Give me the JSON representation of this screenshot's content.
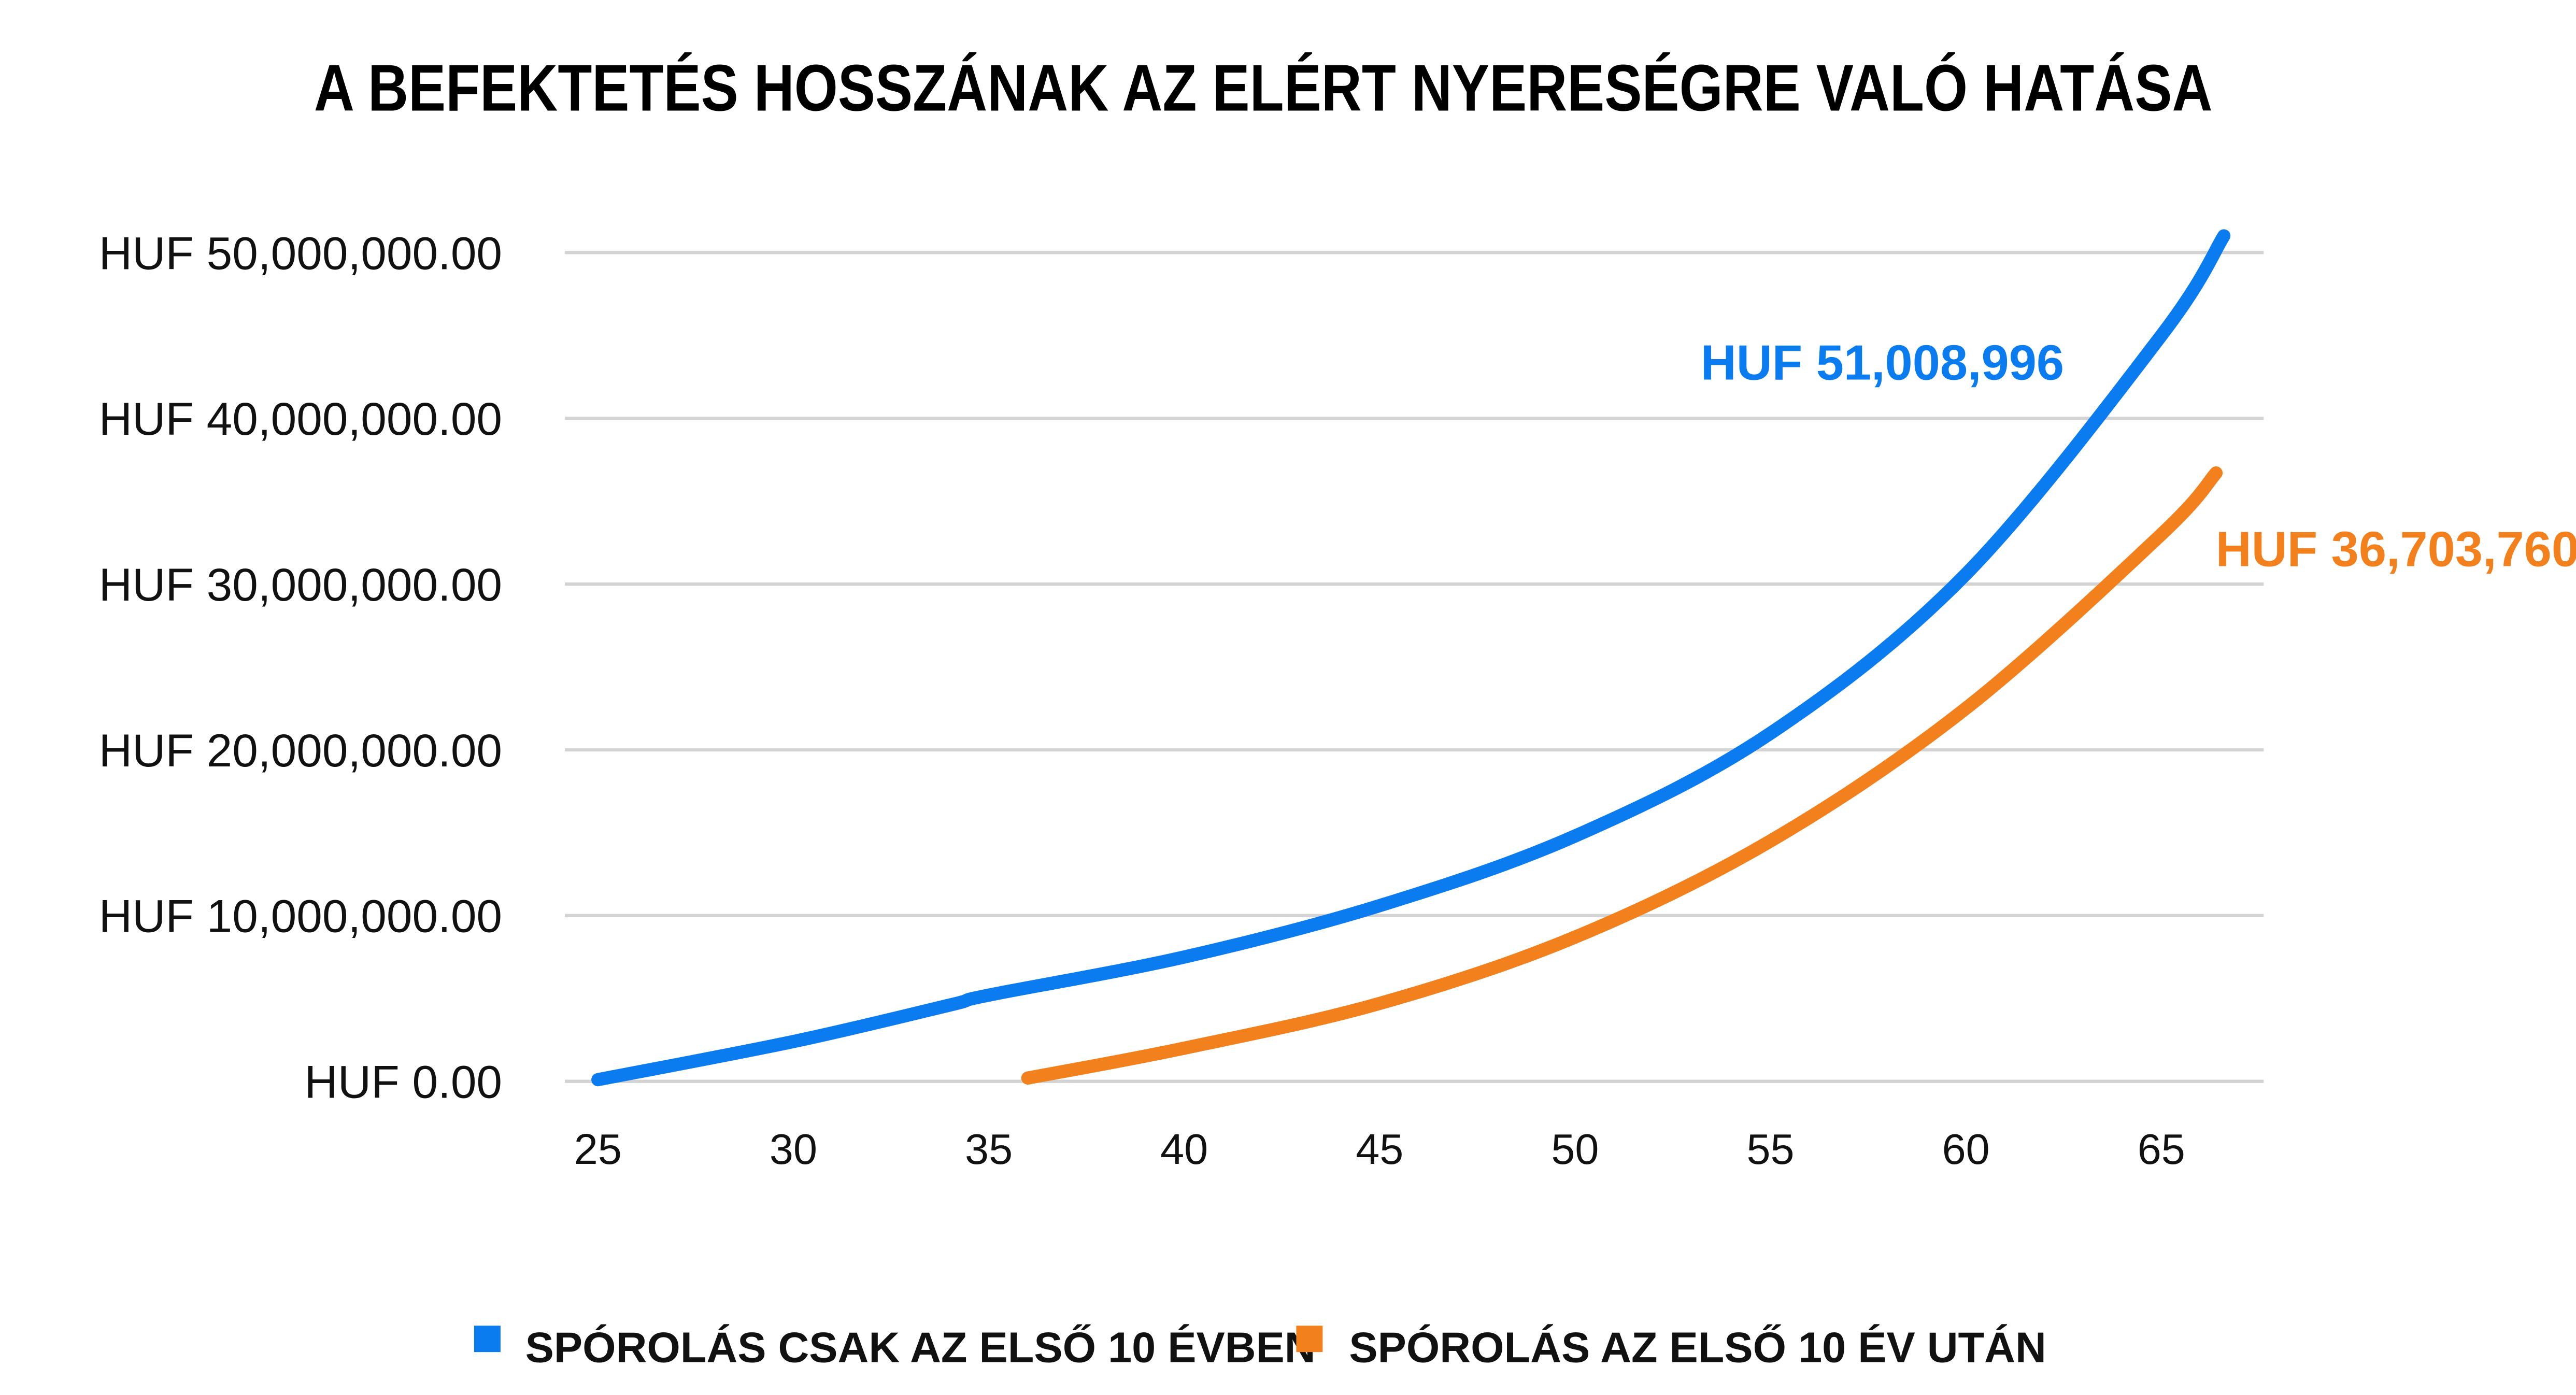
{
  "chart_data": {
    "type": "line",
    "title": "A BEFEKTETÉS HOSSZÁNAK AZ ELÉRT NYERESÉGRE VALÓ HATÁSA",
    "xlabel": "",
    "ylabel": "",
    "xlim": [
      24.2,
      67.5
    ],
    "ylim": [
      0,
      50000000
    ],
    "x_ticks": [
      "25",
      "30",
      "35",
      "40",
      "45",
      "50",
      "55",
      "60",
      "65"
    ],
    "y_ticks": [
      "HUF 0.00",
      "HUF 10,000,000.00",
      "HUF 20,000,000.00",
      "HUF 30,000,000.00",
      "HUF 40,000,000.00",
      "HUF 50,000,000.00"
    ],
    "grid": "horizontal",
    "legend_position": "bottom",
    "series": [
      {
        "name": "SPÓROLÁS CSAK AZ ELSŐ 10 ÉVBEN",
        "color": "#0a7cf0",
        "x": [
          25,
          30,
          34,
          35,
          40,
          45,
          50,
          55,
          60,
          65,
          66.6
        ],
        "y": [
          100000,
          2400000,
          4600000,
          5200000,
          7500000,
          10600000,
          14800000,
          21000000,
          30600000,
          45000000,
          51008996
        ],
        "end_label": "HUF 51,008,996"
      },
      {
        "name": "SPÓROLÁS AZ ELSŐ 10 ÉV UTÁN",
        "color": "#f2811d",
        "x": [
          36,
          40,
          45,
          50,
          55,
          60,
          65,
          66.4
        ],
        "y": [
          200000,
          2000000,
          4700000,
          8700000,
          14500000,
          22500000,
          33000000,
          36703760
        ],
        "end_label": "HUF 36,703,760"
      }
    ]
  }
}
